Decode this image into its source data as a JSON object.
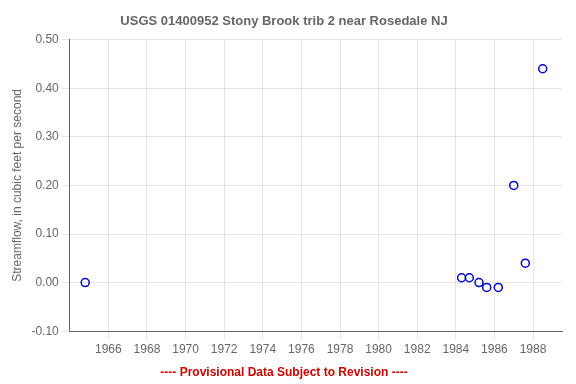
{
  "chart_data": {
    "type": "scatter",
    "title": "USGS 01400952 Stony Brook trib 2 near Rosedale NJ",
    "ylabel": "Streamflow, in cubic feet per second",
    "x": [
      1964.8,
      1984.3,
      1984.7,
      1985.2,
      1985.6,
      1986.2,
      1987.0,
      1987.6,
      1988.5
    ],
    "values": [
      0.0,
      0.01,
      0.01,
      0.0,
      -0.01,
      -0.01,
      0.2,
      0.04,
      0.44
    ],
    "color": "#0000cc",
    "marker": "open_circle",
    "xlim": [
      1964.0,
      1989.5
    ],
    "ylim": [
      -0.1,
      0.5
    ],
    "xticks": [
      1966,
      1968,
      1970,
      1972,
      1974,
      1976,
      1978,
      1980,
      1982,
      1984,
      1986,
      1988
    ],
    "yticks": [
      {
        "value": -0.1,
        "label": "-0.10"
      },
      {
        "value": 0.0,
        "label": "0.00"
      },
      {
        "value": 0.1,
        "label": "0.10"
      },
      {
        "value": 0.2,
        "label": "0.20"
      },
      {
        "value": 0.3,
        "label": "0.30"
      },
      {
        "value": 0.4,
        "label": "0.40"
      },
      {
        "value": 0.5,
        "label": "0.50"
      }
    ],
    "grid": true,
    "annotations": [
      {
        "text": "---- Provisional Data Subject to Revision ----",
        "color": "#cc0000"
      }
    ]
  }
}
